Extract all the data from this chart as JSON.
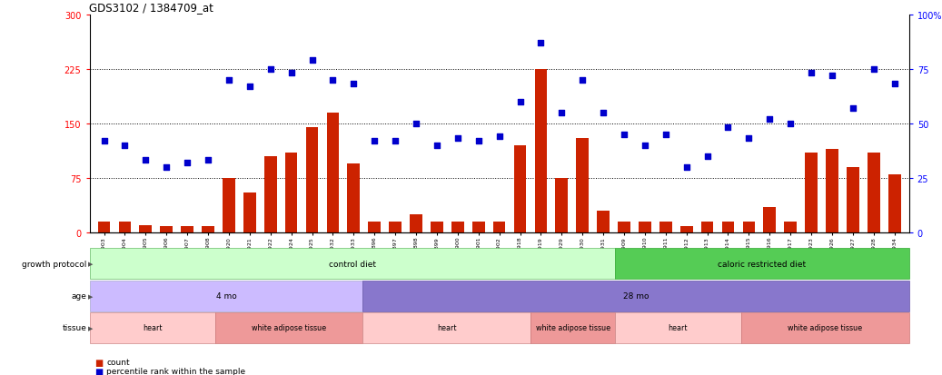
{
  "title": "GDS3102 / 1384709_at",
  "samples": [
    "GSM154903",
    "GSM154904",
    "GSM154905",
    "GSM154906",
    "GSM154907",
    "GSM154908",
    "GSM154920",
    "GSM154921",
    "GSM154922",
    "GSM154924",
    "GSM154925",
    "GSM154932",
    "GSM154933",
    "GSM154896",
    "GSM154897",
    "GSM154898",
    "GSM154899",
    "GSM154900",
    "GSM154901",
    "GSM154902",
    "GSM154918",
    "GSM154919",
    "GSM154929",
    "GSM154930",
    "GSM154931",
    "GSM154909",
    "GSM154910",
    "GSM154911",
    "GSM154912",
    "GSM154913",
    "GSM154914",
    "GSM154915",
    "GSM154916",
    "GSM154917",
    "GSM154923",
    "GSM154926",
    "GSM154927",
    "GSM154928",
    "GSM154934"
  ],
  "counts": [
    15,
    15,
    10,
    8,
    8,
    8,
    75,
    55,
    105,
    110,
    145,
    165,
    95,
    15,
    15,
    25,
    15,
    15,
    15,
    15,
    120,
    225,
    75,
    130,
    30,
    15,
    15,
    15,
    8,
    15,
    15,
    15,
    35,
    15,
    110,
    115,
    90,
    110,
    80
  ],
  "percentiles": [
    42,
    40,
    33,
    30,
    32,
    33,
    70,
    67,
    75,
    73,
    79,
    70,
    68,
    42,
    42,
    50,
    40,
    43,
    42,
    44,
    60,
    87,
    55,
    70,
    55,
    45,
    40,
    45,
    30,
    35,
    48,
    43,
    52,
    50,
    73,
    72,
    57,
    75,
    68
  ],
  "bar_color": "#cc2200",
  "dot_color": "#0000cc",
  "ylim_left": [
    0,
    300
  ],
  "ylim_right": [
    0,
    100
  ],
  "yticks_left": [
    0,
    75,
    150,
    225,
    300
  ],
  "yticks_right": [
    0,
    25,
    50,
    75,
    100
  ],
  "hlines": [
    75,
    150,
    225
  ],
  "growth_protocol_segments": [
    {
      "start": 0,
      "end": 25,
      "label": "control diet",
      "color": "#ccffcc",
      "border": "#66bb66"
    },
    {
      "start": 25,
      "end": 39,
      "label": "caloric restricted diet",
      "color": "#55cc55",
      "border": "#33aa33"
    }
  ],
  "age_segments": [
    {
      "start": 0,
      "end": 13,
      "label": "4 mo",
      "color": "#ccbbff",
      "border": "#aaaacc"
    },
    {
      "start": 13,
      "end": 39,
      "label": "28 mo",
      "color": "#8877cc",
      "border": "#6655aa"
    }
  ],
  "tissue_segments": [
    {
      "start": 0,
      "end": 6,
      "label": "heart",
      "color": "#ffcccc",
      "border": "#cc8888"
    },
    {
      "start": 6,
      "end": 13,
      "label": "white adipose tissue",
      "color": "#ee9999",
      "border": "#cc7777"
    },
    {
      "start": 13,
      "end": 21,
      "label": "heart",
      "color": "#ffcccc",
      "border": "#cc8888"
    },
    {
      "start": 21,
      "end": 25,
      "label": "white adipose tissue",
      "color": "#ee9999",
      "border": "#cc7777"
    },
    {
      "start": 25,
      "end": 31,
      "label": "heart",
      "color": "#ffcccc",
      "border": "#cc8888"
    },
    {
      "start": 31,
      "end": 39,
      "label": "white adipose tissue",
      "color": "#ee9999",
      "border": "#cc7777"
    }
  ],
  "row_labels": [
    "growth protocol",
    "age",
    "tissue"
  ],
  "legend_count_label": "count",
  "legend_percentile_label": "percentile rank within the sample"
}
